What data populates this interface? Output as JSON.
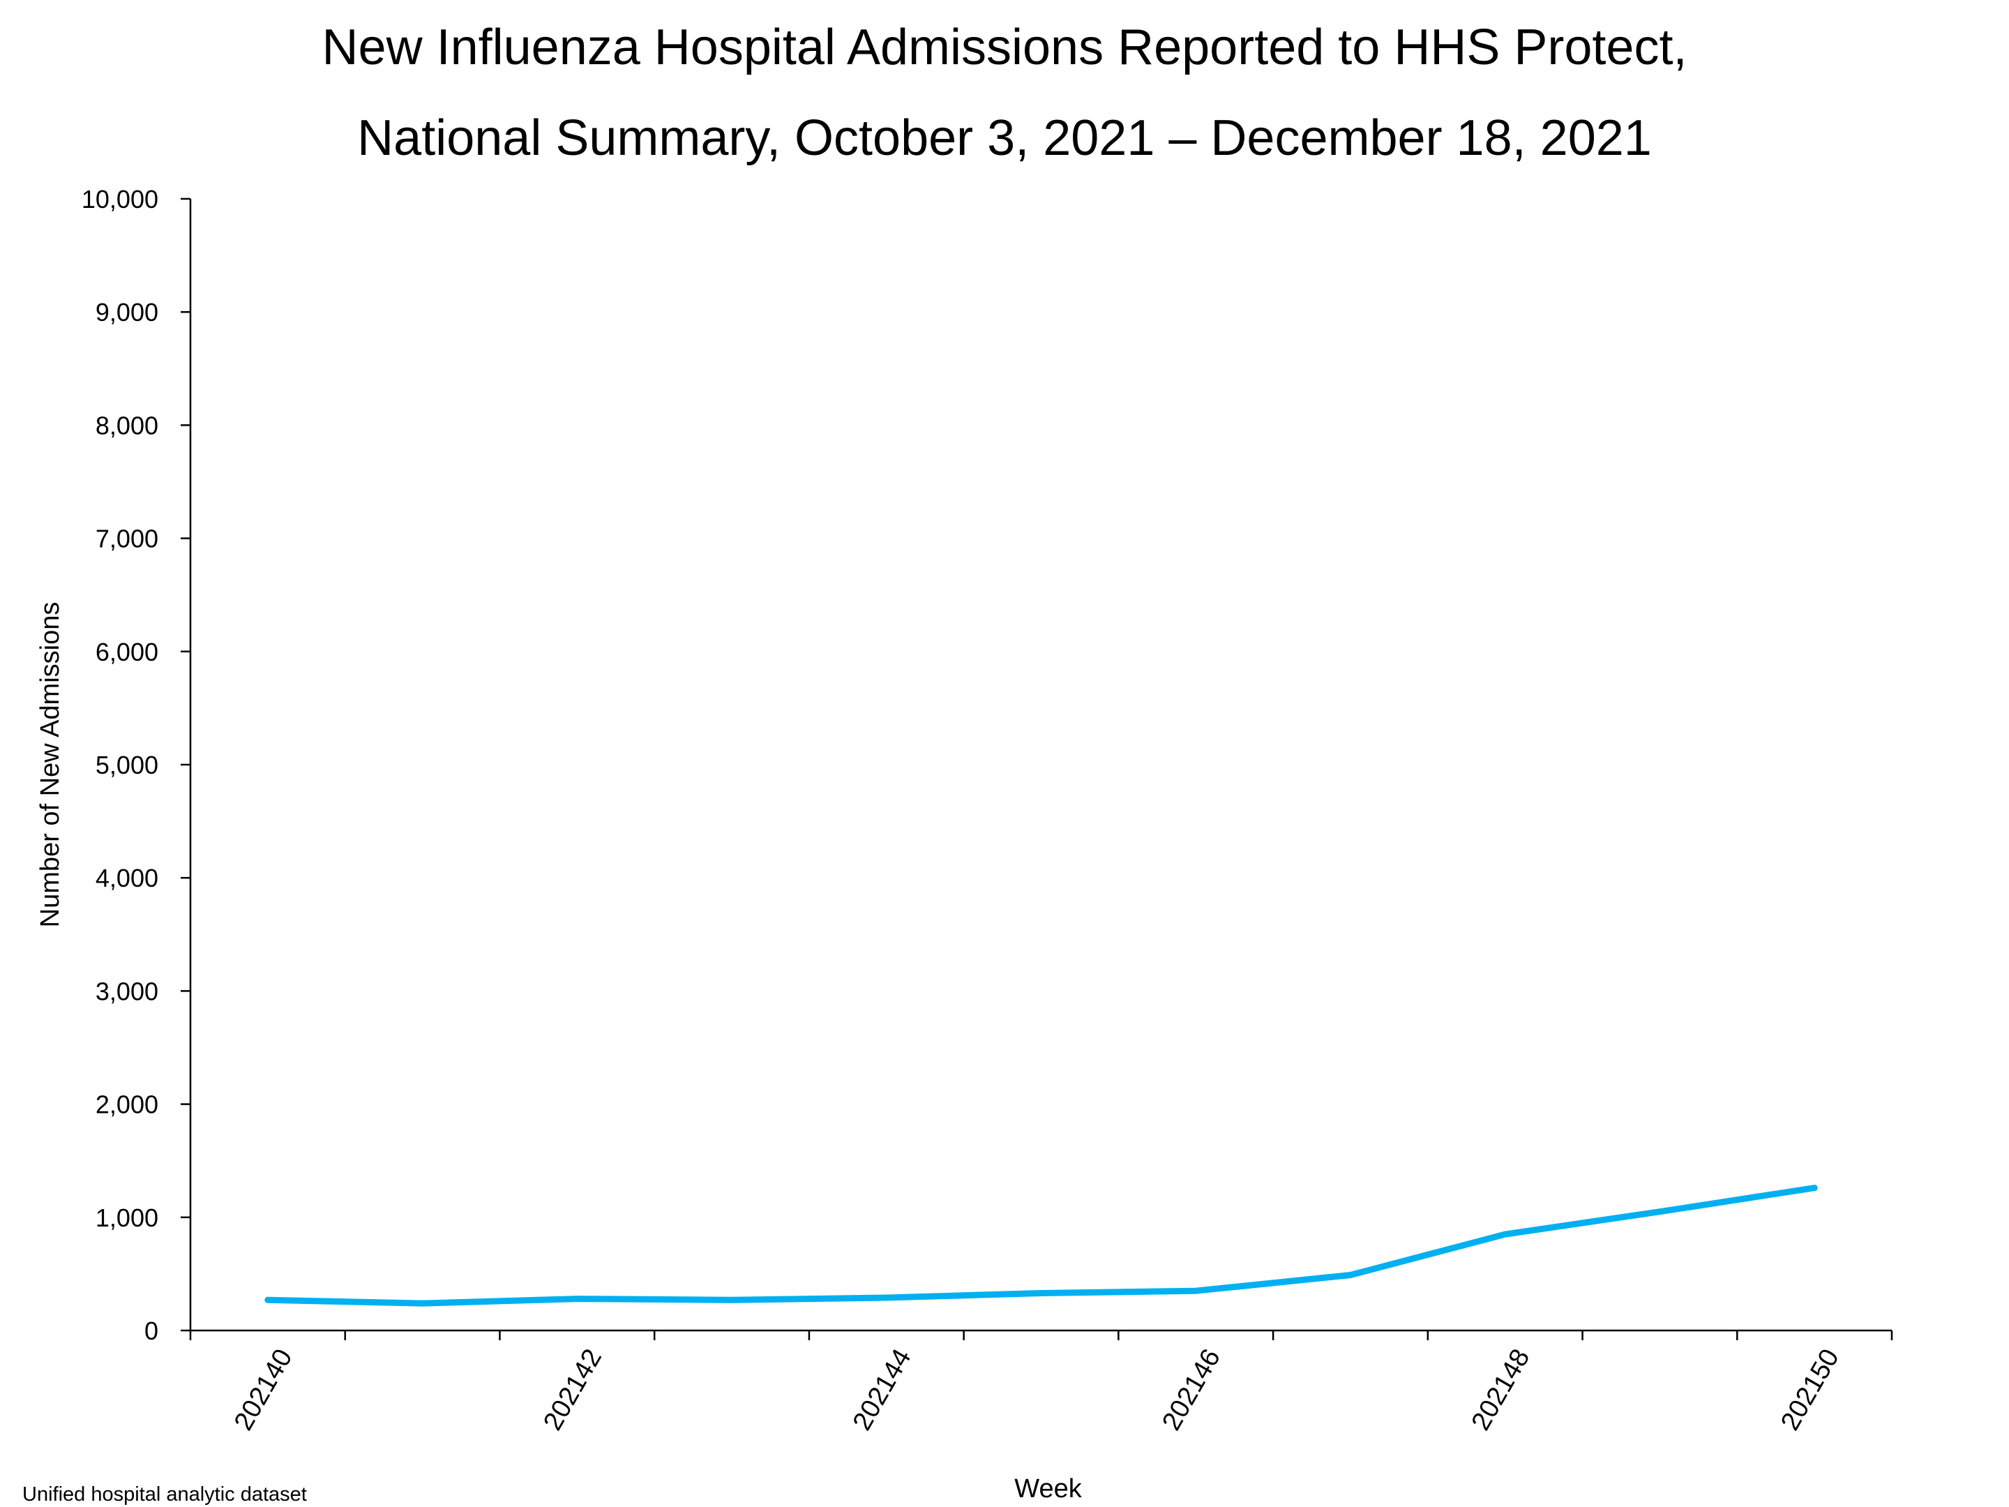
{
  "title_line1": "New Influenza Hospital Admissions Reported to HHS Protect,",
  "title_line2": "National Summary, October 3, 2021 – December 18, 2021",
  "source_note": "Unified hospital analytic dataset",
  "chart_data": {
    "type": "line",
    "title": "New Influenza Hospital Admissions Reported to HHS Protect, National Summary, October 3, 2021 – December 18, 2021",
    "xlabel": "Week",
    "ylabel": "Number of New Admissions",
    "x": [
      "202140",
      "202141",
      "202142",
      "202143",
      "202144",
      "202145",
      "202146",
      "202147",
      "202148",
      "202149",
      "202150"
    ],
    "x_tick_labels": [
      "202140",
      "202142",
      "202144",
      "202146",
      "202148",
      "202150"
    ],
    "y_ticks": [
      "0",
      "1,000",
      "2,000",
      "3,000",
      "4,000",
      "5,000",
      "6,000",
      "7,000",
      "8,000",
      "9,000",
      "10,000"
    ],
    "series": [
      {
        "values": [
          270,
          240,
          280,
          270,
          290,
          330,
          350,
          490,
          850,
          1050,
          1260
        ],
        "color": "#00B0F0"
      }
    ],
    "ylim": [
      0,
      10000
    ],
    "grid": false,
    "legend": "none"
  }
}
